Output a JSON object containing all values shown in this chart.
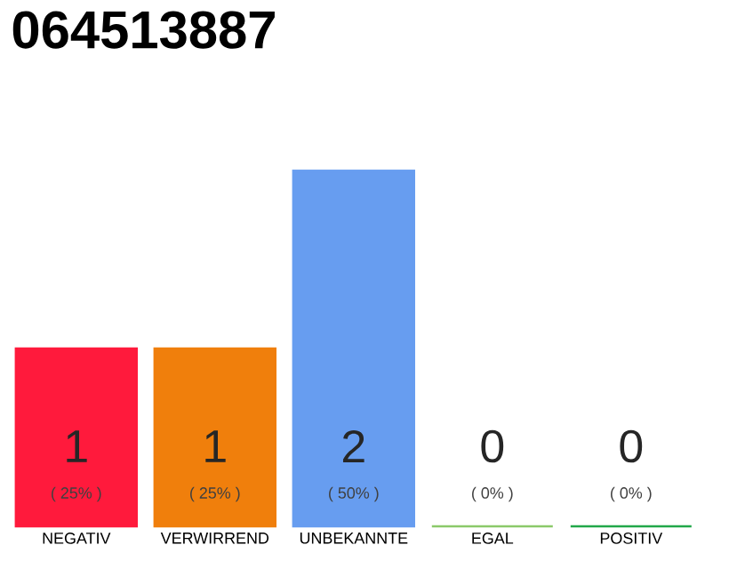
{
  "chart_data": {
    "type": "bar",
    "title": "064513887",
    "categories": [
      "NEGATIV",
      "VERWIRREND",
      "UNBEKANNTE",
      "EGAL",
      "POSITIV"
    ],
    "values": [
      1,
      1,
      2,
      0,
      0
    ],
    "colors": [
      "#ff1a3c",
      "#f07f0c",
      "#679df0",
      "#8bc96a",
      "#22a84a"
    ],
    "ylim": [
      0,
      2
    ],
    "data_labels": true,
    "tick_labels": "x",
    "annotations": [
      "( 25% )",
      "( 25% )",
      "( 50% )",
      "( 0% )",
      "( 0% )"
    ]
  }
}
